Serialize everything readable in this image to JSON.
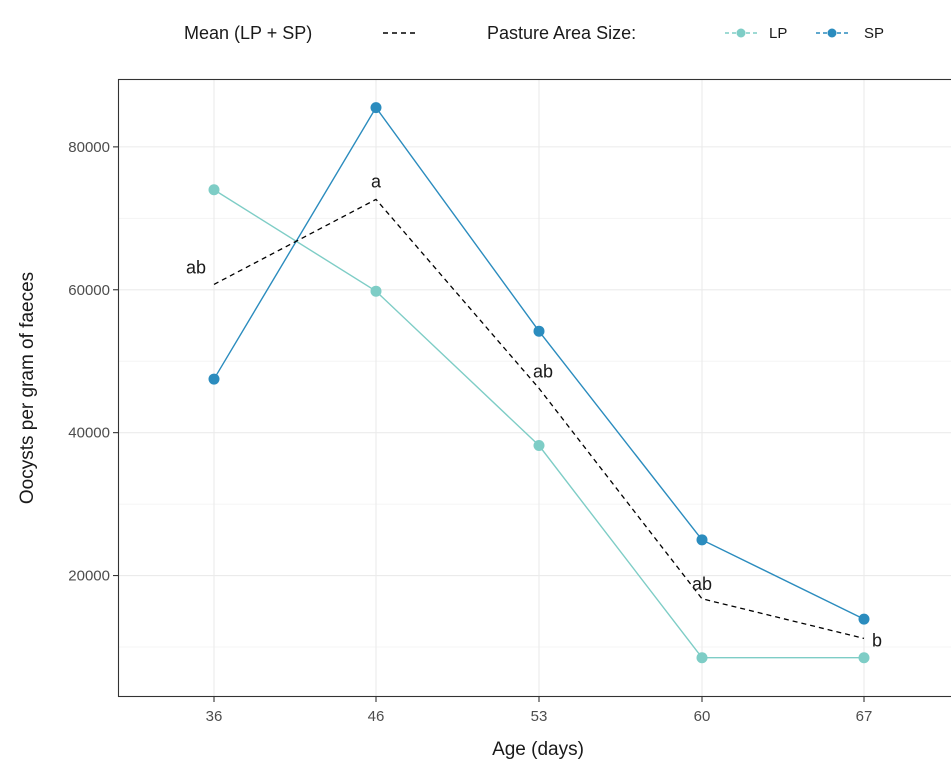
{
  "chart_data": {
    "type": "line",
    "xlabel": "Age (days)",
    "ylabel": "Oocysts per gram of faeces",
    "categories": [
      "36",
      "46",
      "53",
      "60",
      "67"
    ],
    "ylim": [
      3000,
      89500
    ],
    "yticks": [
      20000,
      40000,
      60000,
      80000
    ],
    "yticks_labels": [
      "20000",
      "40000",
      "60000",
      "80000"
    ],
    "grid": true,
    "legend_position": "top",
    "legend": {
      "mean_label": "Mean (LP + SP)",
      "group_title": "Pasture Area Size:",
      "items": [
        "LP",
        "SP"
      ]
    },
    "series": [
      {
        "name": "LP",
        "color": "#7ecdc6",
        "values": [
          74000,
          59800,
          38200,
          8500,
          8500
        ]
      },
      {
        "name": "SP",
        "color": "#2b8cbe",
        "values": [
          47500,
          85500,
          54200,
          25000,
          13900
        ]
      },
      {
        "name": "Mean (LP + SP)",
        "color": "#000000",
        "style": "dashed",
        "values": [
          60750,
          72650,
          46200,
          16750,
          11200
        ]
      }
    ],
    "annotations": [
      {
        "x": "36",
        "text": "ab"
      },
      {
        "x": "46",
        "text": "a"
      },
      {
        "x": "53",
        "text": "ab"
      },
      {
        "x": "60",
        "text": "ab"
      },
      {
        "x": "67",
        "text": "b"
      }
    ]
  }
}
